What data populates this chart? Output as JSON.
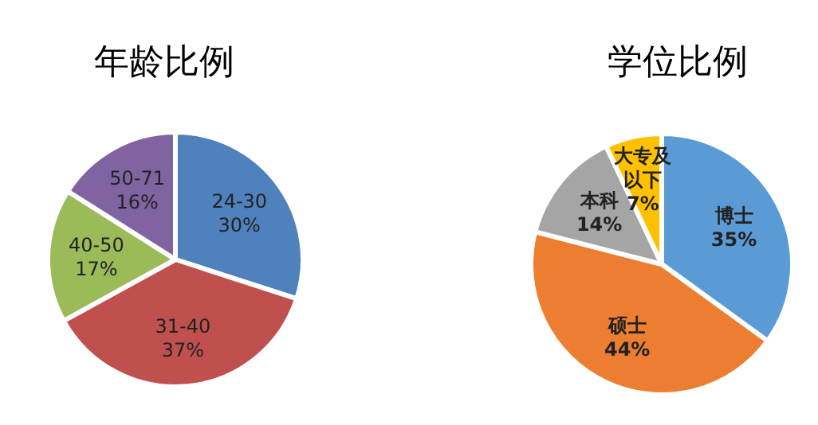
{
  "chart_data": [
    {
      "type": "pie",
      "title": "年龄比例",
      "categories": [
        "24-30",
        "31-40",
        "40-50",
        "50-71"
      ],
      "values": [
        30,
        37,
        17,
        16
      ],
      "value_labels": [
        "30%",
        "37%",
        "17%",
        "16%"
      ],
      "colors": [
        "#4f81bd",
        "#c0504d",
        "#9bbb59",
        "#8064a2"
      ]
    },
    {
      "type": "pie",
      "title": "学位比例",
      "categories": [
        "博士",
        "硕士",
        "本科",
        "大专及以下"
      ],
      "values": [
        35,
        44,
        14,
        7
      ],
      "value_labels": [
        "35%",
        "44%",
        "14%",
        "7%"
      ],
      "colors": [
        "#5b9bd5",
        "#ed7d31",
        "#a5a5a5",
        "#ffc000"
      ]
    }
  ]
}
